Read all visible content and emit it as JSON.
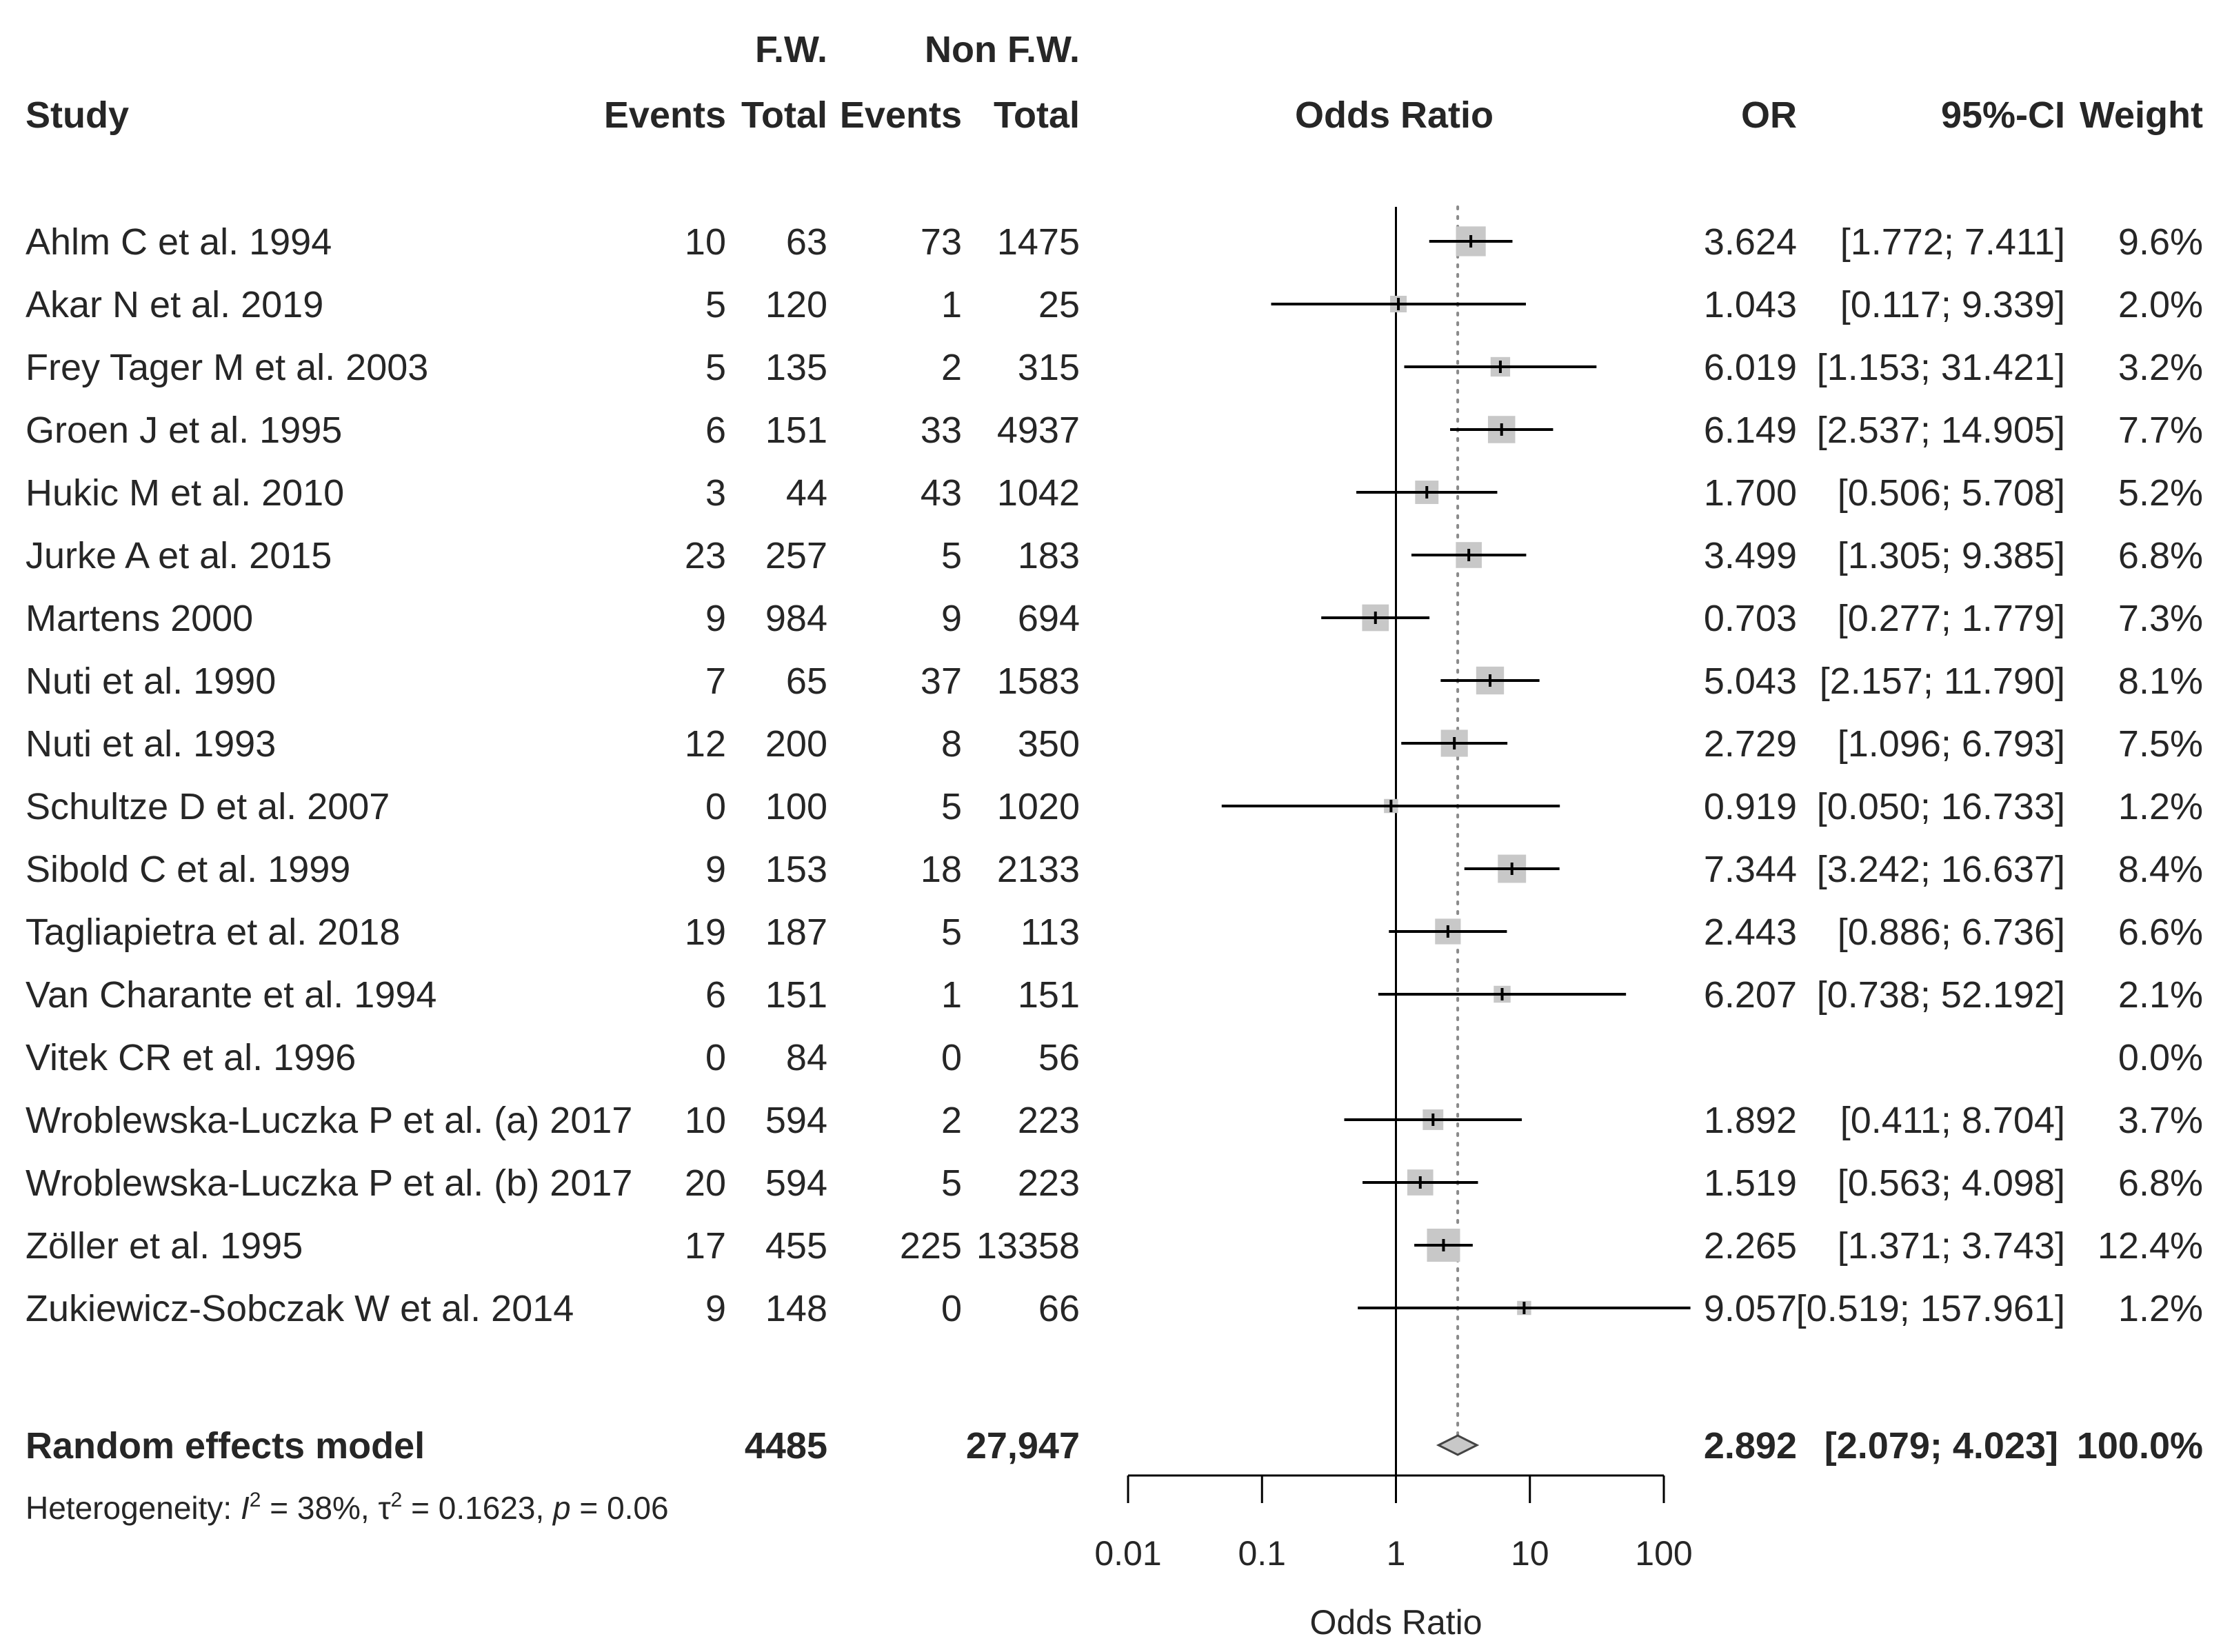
{
  "chart_data": {
    "type": "forest",
    "title": "",
    "xlabel": "Odds Ratio",
    "scale": "log",
    "xlim": [
      0.01,
      100
    ],
    "x_ticks": [
      "0.01",
      "0.1",
      "1",
      "10",
      "100"
    ],
    "x_tick_values": [
      0.01,
      0.1,
      1,
      10,
      100
    ],
    "reference_line": 1,
    "pooled_line": 2.892,
    "group_headers": {
      "exp": "F.W.",
      "ctrl": "Non F.W."
    },
    "columns": {
      "study": "Study",
      "exp_events": "Events",
      "exp_total": "Total",
      "ctrl_events": "Events",
      "ctrl_total": "Total",
      "plot": "Odds Ratio",
      "or": "OR",
      "ci": "95%-CI",
      "weight": "Weight"
    },
    "studies": [
      {
        "name": "Ahlm C et al. 1994",
        "e_ev": "10",
        "e_tot": "63",
        "c_ev": "73",
        "c_tot": "1475",
        "or": 3.624,
        "lo": 1.772,
        "hi": 7.411,
        "w": 9.6,
        "or_txt": "3.624",
        "ci_txt": "[1.772;  7.411]",
        "w_txt": "9.6%"
      },
      {
        "name": "Akar N et al. 2019",
        "e_ev": "5",
        "e_tot": "120",
        "c_ev": "1",
        "c_tot": "25",
        "or": 1.043,
        "lo": 0.117,
        "hi": 9.339,
        "w": 2.0,
        "or_txt": "1.043",
        "ci_txt": "[0.117;  9.339]",
        "w_txt": "2.0%"
      },
      {
        "name": "Frey Tager M et al. 2003",
        "e_ev": "5",
        "e_tot": "135",
        "c_ev": "2",
        "c_tot": "315",
        "or": 6.019,
        "lo": 1.153,
        "hi": 31.421,
        "w": 3.2,
        "or_txt": "6.019",
        "ci_txt": "[1.153; 31.421]",
        "w_txt": "3.2%"
      },
      {
        "name": "Groen J et al. 1995",
        "e_ev": "6",
        "e_tot": "151",
        "c_ev": "33",
        "c_tot": "4937",
        "or": 6.149,
        "lo": 2.537,
        "hi": 14.905,
        "w": 7.7,
        "or_txt": "6.149",
        "ci_txt": "[2.537; 14.905]",
        "w_txt": "7.7%"
      },
      {
        "name": "Hukic M et al. 2010",
        "e_ev": "3",
        "e_tot": "44",
        "c_ev": "43",
        "c_tot": "1042",
        "or": 1.7,
        "lo": 0.506,
        "hi": 5.708,
        "w": 5.2,
        "or_txt": "1.700",
        "ci_txt": "[0.506;  5.708]",
        "w_txt": "5.2%"
      },
      {
        "name": "Jurke A et al. 2015",
        "e_ev": "23",
        "e_tot": "257",
        "c_ev": "5",
        "c_tot": "183",
        "or": 3.499,
        "lo": 1.305,
        "hi": 9.385,
        "w": 6.8,
        "or_txt": "3.499",
        "ci_txt": "[1.305;  9.385]",
        "w_txt": "6.8%"
      },
      {
        "name": "Martens 2000",
        "e_ev": "9",
        "e_tot": "984",
        "c_ev": "9",
        "c_tot": "694",
        "or": 0.703,
        "lo": 0.277,
        "hi": 1.779,
        "w": 7.3,
        "or_txt": "0.703",
        "ci_txt": "[0.277;  1.779]",
        "w_txt": "7.3%"
      },
      {
        "name": "Nuti et al. 1990",
        "e_ev": "7",
        "e_tot": "65",
        "c_ev": "37",
        "c_tot": "1583",
        "or": 5.043,
        "lo": 2.157,
        "hi": 11.79,
        "w": 8.1,
        "or_txt": "5.043",
        "ci_txt": "[2.157; 11.790]",
        "w_txt": "8.1%"
      },
      {
        "name": "Nuti et al. 1993",
        "e_ev": "12",
        "e_tot": "200",
        "c_ev": "8",
        "c_tot": "350",
        "or": 2.729,
        "lo": 1.096,
        "hi": 6.793,
        "w": 7.5,
        "or_txt": "2.729",
        "ci_txt": "[1.096;  6.793]",
        "w_txt": "7.5%"
      },
      {
        "name": "Schultze D et al. 2007",
        "e_ev": "0",
        "e_tot": "100",
        "c_ev": "5",
        "c_tot": "1020",
        "or": 0.919,
        "lo": 0.05,
        "hi": 16.733,
        "w": 1.2,
        "or_txt": "0.919",
        "ci_txt": "[0.050; 16.733]",
        "w_txt": "1.2%"
      },
      {
        "name": "Sibold C et al. 1999",
        "e_ev": "9",
        "e_tot": "153",
        "c_ev": "18",
        "c_tot": "2133",
        "or": 7.344,
        "lo": 3.242,
        "hi": 16.637,
        "w": 8.4,
        "or_txt": "7.344",
        "ci_txt": "[3.242; 16.637]",
        "w_txt": "8.4%"
      },
      {
        "name": "Tagliapietra et al. 2018",
        "e_ev": "19",
        "e_tot": "187",
        "c_ev": "5",
        "c_tot": "113",
        "or": 2.443,
        "lo": 0.886,
        "hi": 6.736,
        "w": 6.6,
        "or_txt": "2.443",
        "ci_txt": "[0.886;  6.736]",
        "w_txt": "6.6%"
      },
      {
        "name": "Van Charante et al. 1994",
        "e_ev": "6",
        "e_tot": "151",
        "c_ev": "1",
        "c_tot": "151",
        "or": 6.207,
        "lo": 0.738,
        "hi": 52.192,
        "w": 2.1,
        "or_txt": "6.207",
        "ci_txt": "[0.738; 52.192]",
        "w_txt": "2.1%"
      },
      {
        "name": "Vitek CR et al. 1996",
        "e_ev": "0",
        "e_tot": "84",
        "c_ev": "0",
        "c_tot": "56",
        "or": null,
        "lo": null,
        "hi": null,
        "w": 0.0,
        "or_txt": "",
        "ci_txt": "",
        "w_txt": "0.0%"
      },
      {
        "name": "Wroblewska-Luczka P et al. (a) 2017",
        "e_ev": "10",
        "e_tot": "594",
        "c_ev": "2",
        "c_tot": "223",
        "or": 1.892,
        "lo": 0.411,
        "hi": 8.704,
        "w": 3.7,
        "or_txt": "1.892",
        "ci_txt": "[0.411;  8.704]",
        "w_txt": "3.7%"
      },
      {
        "name": "Wroblewska-Luczka P et al. (b) 2017",
        "e_ev": "20",
        "e_tot": "594",
        "c_ev": "5",
        "c_tot": "223",
        "or": 1.519,
        "lo": 0.563,
        "hi": 4.098,
        "w": 6.8,
        "or_txt": "1.519",
        "ci_txt": "[0.563;  4.098]",
        "w_txt": "6.8%"
      },
      {
        "name": "Zöller et al. 1995",
        "e_ev": "17",
        "e_tot": "455",
        "c_ev": "225",
        "c_tot": "13358",
        "or": 2.265,
        "lo": 1.371,
        "hi": 3.743,
        "w": 12.4,
        "or_txt": "2.265",
        "ci_txt": "[1.371;  3.743]",
        "w_txt": "12.4%"
      },
      {
        "name": "Zukiewicz-Sobczak W et al. 2014",
        "e_ev": "9",
        "e_tot": "148",
        "c_ev": "0",
        "c_tot": "66",
        "or": 9.057,
        "lo": 0.519,
        "hi": 157.961,
        "w": 1.2,
        "or_txt": "9.057",
        "ci_txt": "[0.519; 157.961]",
        "w_txt": "1.2%"
      }
    ],
    "pooled": {
      "name": "Random effects model",
      "e_tot": "4485",
      "c_tot": "27,947",
      "or": 2.892,
      "lo": 2.079,
      "hi": 4.023,
      "or_txt": "2.892",
      "ci_txt": "[2.079; 4.023]",
      "w_txt": "100.0%"
    },
    "heterogeneity": {
      "prefix": "Heterogeneity: ",
      "i2_symbol": "I",
      "i2_value": " = 38%, ",
      "tau_symbol": "τ",
      "tau_value": " = 0.1623, ",
      "p_symbol": "p",
      "p_value": " = 0.06"
    }
  }
}
